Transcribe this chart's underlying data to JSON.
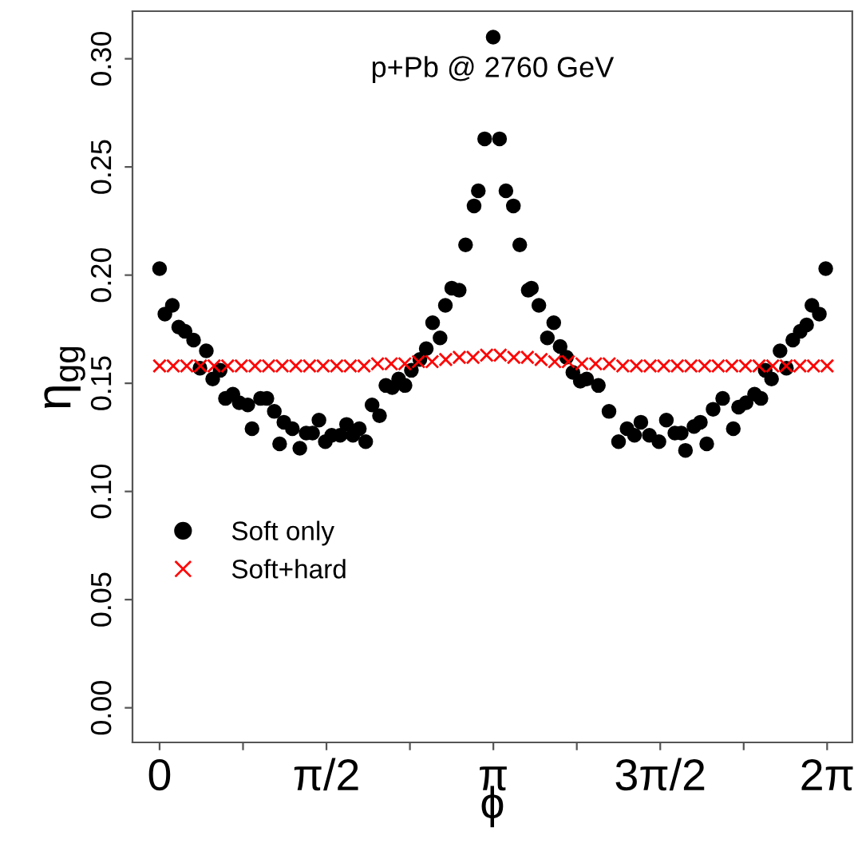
{
  "chart_data": {
    "type": "scatter",
    "title": "p+Pb @ 2760 GeV",
    "xlabel": "ϕ",
    "ylabel": "η$_{gg}$",
    "xlim": [
      -0.255,
      6.52
    ],
    "ylim": [
      -0.016,
      0.322
    ],
    "xticks": [
      {
        "value": 0,
        "label": "0"
      },
      {
        "value": 0.785398,
        "label": null
      },
      {
        "value": 1.570796,
        "label": "π/2"
      },
      {
        "value": 2.356194,
        "label": null
      },
      {
        "value": 3.141593,
        "label": "π"
      },
      {
        "value": 3.926991,
        "label": null
      },
      {
        "value": 4.712389,
        "label": "3π/2"
      },
      {
        "value": 5.497787,
        "label": null
      },
      {
        "value": 6.283185,
        "label": "2π"
      }
    ],
    "yticks": [
      {
        "value": 0,
        "label": "0.00"
      },
      {
        "value": 0.05,
        "label": "0.05"
      },
      {
        "value": 0.1,
        "label": "0.10"
      },
      {
        "value": 0.15,
        "label": "0.15"
      },
      {
        "value": 0.2,
        "label": "0.20"
      },
      {
        "value": 0.25,
        "label": "0.25"
      },
      {
        "value": 0.3,
        "label": "0.30"
      }
    ],
    "grid": false,
    "legend": "center left",
    "series": [
      {
        "name": "Soft only",
        "color": "#000000",
        "marker": "circle",
        "x": [
          0.0,
          0.05,
          0.12,
          0.18,
          0.24,
          0.32,
          0.38,
          0.44,
          0.5,
          0.57,
          0.62,
          0.69,
          0.75,
          0.83,
          0.87,
          0.95,
          1.01,
          1.08,
          1.13,
          1.17,
          1.25,
          1.32,
          1.38,
          1.44,
          1.5,
          1.56,
          1.62,
          1.7,
          1.76,
          1.82,
          1.88,
          1.94,
          2.0,
          2.07,
          2.13,
          2.19,
          2.25,
          2.31,
          2.37,
          2.45,
          2.51,
          2.57,
          2.64,
          2.69,
          2.75,
          2.82,
          2.88,
          2.96,
          3.0,
          3.06,
          3.14,
          3.2,
          3.26,
          3.33,
          3.39,
          3.47,
          3.5,
          3.57,
          3.65,
          3.71,
          3.77,
          3.83,
          3.89,
          3.96,
          4.02,
          4.13,
          4.23,
          4.32,
          4.4,
          4.47,
          4.53,
          4.61,
          4.7,
          4.77,
          4.85,
          4.91,
          4.95,
          5.03,
          5.09,
          5.15,
          5.21,
          5.3,
          5.4,
          5.45,
          5.52,
          5.6,
          5.66,
          5.7,
          5.76,
          5.84,
          5.9,
          5.96,
          6.03,
          6.09,
          6.14,
          6.21,
          6.27
        ],
        "values": [
          0.203,
          0.182,
          0.186,
          0.176,
          0.174,
          0.17,
          0.157,
          0.165,
          0.152,
          0.156,
          0.143,
          0.145,
          0.141,
          0.14,
          0.129,
          0.143,
          0.143,
          0.137,
          0.122,
          0.132,
          0.129,
          0.12,
          0.127,
          0.127,
          0.133,
          0.123,
          0.126,
          0.126,
          0.131,
          0.126,
          0.129,
          0.123,
          0.14,
          0.135,
          0.149,
          0.148,
          0.152,
          0.149,
          0.156,
          0.161,
          0.166,
          0.178,
          0.171,
          0.186,
          0.194,
          0.193,
          0.214,
          0.232,
          0.239,
          0.263,
          0.31,
          0.263,
          0.239,
          0.232,
          0.214,
          0.193,
          0.194,
          0.186,
          0.171,
          0.178,
          0.167,
          0.162,
          0.155,
          0.151,
          0.152,
          0.149,
          0.137,
          0.123,
          0.129,
          0.126,
          0.132,
          0.126,
          0.123,
          0.133,
          0.127,
          0.127,
          0.119,
          0.13,
          0.132,
          0.122,
          0.138,
          0.143,
          0.129,
          0.139,
          0.141,
          0.145,
          0.143,
          0.156,
          0.152,
          0.165,
          0.157,
          0.17,
          0.174,
          0.177,
          0.186,
          0.182,
          0.203
        ]
      },
      {
        "name": "Soft+hard",
        "color": "#ff0000",
        "marker": "cross",
        "x": [
          0,
          0.128,
          0.256,
          0.385,
          0.513,
          0.641,
          0.769,
          0.898,
          1.026,
          1.154,
          1.282,
          1.411,
          1.539,
          1.667,
          1.795,
          1.924,
          2.052,
          2.18,
          2.308,
          2.437,
          2.565,
          2.693,
          2.821,
          2.95,
          3.078,
          3.206,
          3.334,
          3.462,
          3.591,
          3.719,
          3.847,
          3.975,
          4.104,
          4.232,
          4.36,
          4.488,
          4.617,
          4.745,
          4.873,
          5.001,
          5.13,
          5.258,
          5.386,
          5.514,
          5.642,
          5.771,
          5.899,
          6.027,
          6.155,
          6.283
        ],
        "values": [
          0.158,
          0.158,
          0.158,
          0.158,
          0.158,
          0.158,
          0.158,
          0.158,
          0.158,
          0.158,
          0.158,
          0.158,
          0.158,
          0.158,
          0.158,
          0.158,
          0.159,
          0.159,
          0.159,
          0.16,
          0.16,
          0.161,
          0.162,
          0.162,
          0.163,
          0.163,
          0.162,
          0.162,
          0.161,
          0.16,
          0.16,
          0.159,
          0.159,
          0.159,
          0.158,
          0.158,
          0.158,
          0.158,
          0.158,
          0.158,
          0.158,
          0.158,
          0.158,
          0.158,
          0.158,
          0.158,
          0.158,
          0.158,
          0.158,
          0.158
        ]
      }
    ]
  }
}
